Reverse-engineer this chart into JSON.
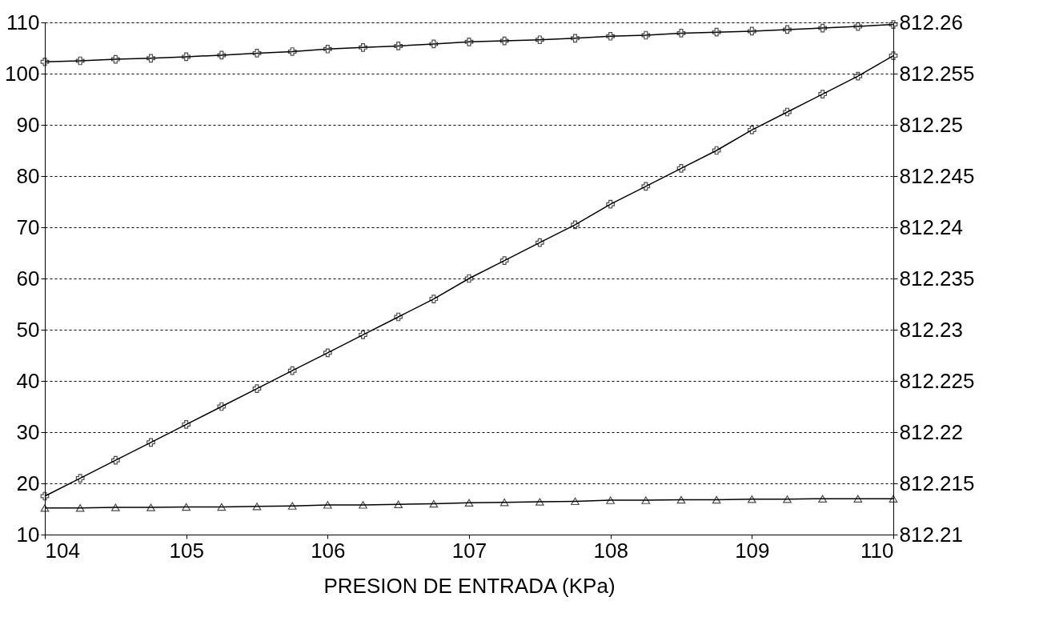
{
  "chart_data": {
    "type": "line",
    "xlabel": "PRESION DE ENTRADA (KPa)",
    "x": [
      104,
      104.25,
      104.5,
      104.75,
      105,
      105.25,
      105.5,
      105.75,
      106,
      106.25,
      106.5,
      106.75,
      107,
      107.25,
      107.5,
      107.75,
      108,
      108.25,
      108.5,
      108.75,
      109,
      109.25,
      109.5,
      109.75,
      110
    ],
    "series": [
      {
        "color": "#000000",
        "marker": "cross",
        "values": [
          102.3,
          102.5,
          102.8,
          103.0,
          103.3,
          103.6,
          104.0,
          104.3,
          104.8,
          105.1,
          105.4,
          105.8,
          106.2,
          106.4,
          106.6,
          106.9,
          107.3,
          107.5,
          107.9,
          108.1,
          108.3,
          108.6,
          108.9,
          109.2,
          109.6
        ]
      },
      {
        "color": "#000000",
        "marker": "cross",
        "values": [
          17.5,
          21,
          24.5,
          28,
          31.5,
          35,
          38.5,
          42,
          45.5,
          49,
          52.5,
          56,
          60,
          63.5,
          67,
          70.5,
          74.5,
          78,
          81.5,
          85,
          89,
          92.5,
          96,
          99.5,
          103.5
        ]
      },
      {
        "color": "#000000",
        "marker": "triangle",
        "values": [
          15.2,
          15.2,
          15.3,
          15.3,
          15.4,
          15.4,
          15.5,
          15.6,
          15.8,
          15.8,
          15.9,
          16.0,
          16.2,
          16.3,
          16.4,
          16.5,
          16.7,
          16.7,
          16.8,
          16.8,
          16.9,
          16.9,
          17.0,
          17.0,
          17.0
        ]
      }
    ],
    "xlim": [
      104,
      110
    ],
    "xticks": [
      104,
      105,
      106,
      107,
      108,
      109,
      110
    ],
    "ylim": [
      10,
      110
    ],
    "yticks": [
      10,
      20,
      30,
      40,
      50,
      60,
      70,
      80,
      90,
      100,
      110
    ],
    "y2lim": [
      812.21,
      812.26
    ],
    "y2ticks": [
      812.21,
      812.215,
      812.22,
      812.225,
      812.23,
      812.235,
      812.24,
      812.245,
      812.25,
      812.255,
      812.26
    ],
    "grid": "y",
    "line_style": "solid"
  }
}
